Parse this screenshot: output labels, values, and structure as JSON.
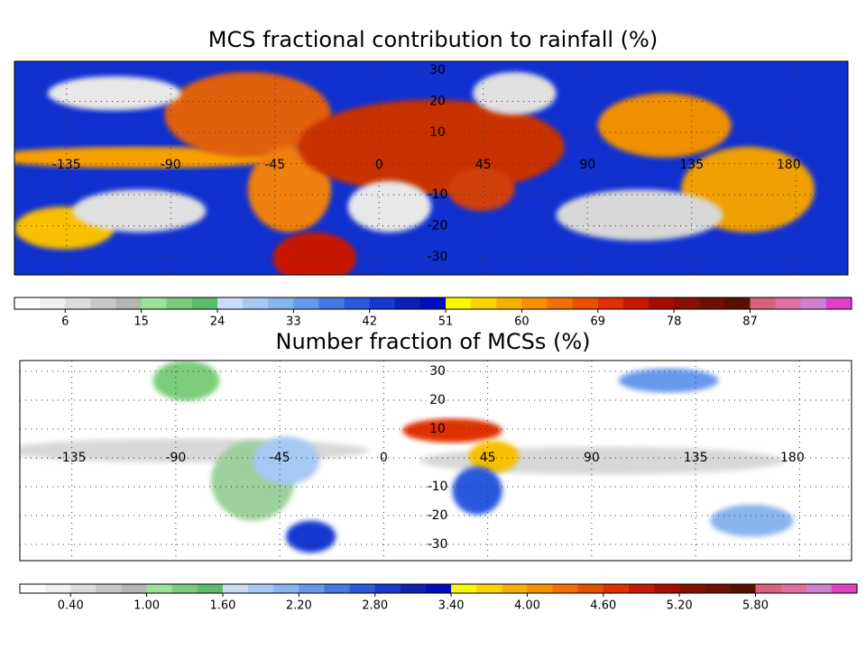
{
  "panels": [
    {
      "title": "MCS fractional contribution to rainfall (%)",
      "lon_labels": [
        "-135",
        "-90",
        "-45",
        "0",
        "45",
        "90",
        "135",
        "180"
      ],
      "lat_labels": [
        "30",
        "20",
        "10",
        "-10",
        "-20",
        "-30"
      ],
      "colorbar_labels": [
        "6",
        "15",
        "24",
        "33",
        "42",
        "51",
        "60",
        "69",
        "78",
        "87"
      ]
    },
    {
      "title": "Number fraction of MCSs  (%)",
      "lon_labels": [
        "-135",
        "-90",
        "-45",
        "0",
        "45",
        "90",
        "135",
        "180"
      ],
      "lat_labels": [
        "30",
        "20",
        "10",
        "-10",
        "-20",
        "-30"
      ],
      "colorbar_labels": [
        "0.40",
        "1.00",
        "1.60",
        "2.20",
        "2.80",
        "3.40",
        "4.00",
        "4.60",
        "5.20",
        "5.80"
      ]
    }
  ]
}
